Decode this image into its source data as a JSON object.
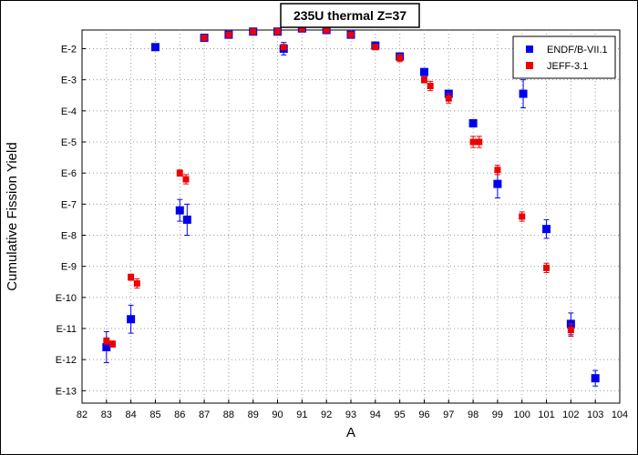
{
  "chart_data": {
    "type": "scatter",
    "title": "235U thermal Z=37",
    "xlabel": "A",
    "ylabel": "Cumulative Fission Yield",
    "xlim": [
      82,
      104
    ],
    "ylim_log10": [
      -13.4,
      -1.4
    ],
    "yscale": "log",
    "grid": true,
    "legend_position": "top-right",
    "x_ticks": [
      "82",
      "83",
      "84",
      "85",
      "86",
      "87",
      "88",
      "89",
      "90",
      "91",
      "92",
      "93",
      "94",
      "95",
      "96",
      "97",
      "98",
      "99",
      "100",
      "101",
      "102",
      "103",
      "104"
    ],
    "y_ticks": [
      {
        "exp": -2,
        "label": "E-2"
      },
      {
        "exp": -3,
        "label": "E-3"
      },
      {
        "exp": -4,
        "label": "E-4"
      },
      {
        "exp": -5,
        "label": "E-5"
      },
      {
        "exp": -6,
        "label": "E-6"
      },
      {
        "exp": -7,
        "label": "E-7"
      },
      {
        "exp": -8,
        "label": "E-8"
      },
      {
        "exp": -9,
        "label": "E-9"
      },
      {
        "exp": -10,
        "label": "E-10"
      },
      {
        "exp": -11,
        "label": "E-11"
      },
      {
        "exp": -12,
        "label": "E-12"
      },
      {
        "exp": -13,
        "label": "E-13"
      }
    ],
    "series": [
      {
        "name": "ENDF/B-VII.1",
        "color": "#0000ee",
        "points": [
          {
            "x": 83.0,
            "logy": -11.6,
            "err": 0.5
          },
          {
            "x": 84.0,
            "logy": -10.7,
            "err": 0.45
          },
          {
            "x": 85.0,
            "logy": -1.95,
            "err": 0.05
          },
          {
            "x": 86.0,
            "logy": -7.2,
            "err": 0.35
          },
          {
            "x": 86.3,
            "logy": -7.5,
            "err": 0.5
          },
          {
            "x": 87.0,
            "logy": -1.65,
            "err": 0.04
          },
          {
            "x": 88.0,
            "logy": -1.55,
            "err": 0.04
          },
          {
            "x": 89.0,
            "logy": -1.45,
            "err": 0.04
          },
          {
            "x": 90.0,
            "logy": -1.45,
            "err": 0.04
          },
          {
            "x": 90.25,
            "logy": -2.0,
            "err": 0.2
          },
          {
            "x": 91.0,
            "logy": -1.35,
            "err": 0.04
          },
          {
            "x": 92.0,
            "logy": -1.4,
            "err": 0.04
          },
          {
            "x": 93.0,
            "logy": -1.55,
            "err": 0.04
          },
          {
            "x": 94.0,
            "logy": -1.9,
            "err": 0.06
          },
          {
            "x": 95.0,
            "logy": -2.25,
            "err": 0.06
          },
          {
            "x": 96.0,
            "logy": -2.75,
            "err": 0.08
          },
          {
            "x": 97.0,
            "logy": -3.45,
            "err": 0.1
          },
          {
            "x": 98.0,
            "logy": -4.4,
            "err": 0.12
          },
          {
            "x": 99.0,
            "logy": -6.35,
            "err": 0.45
          },
          {
            "x": 100.05,
            "logy": -3.45,
            "err": 0.45
          },
          {
            "x": 101.0,
            "logy": -7.8,
            "err": 0.3
          },
          {
            "x": 102.0,
            "logy": -10.85,
            "err": 0.35
          },
          {
            "x": 103.0,
            "logy": -12.6,
            "err": 0.25
          }
        ]
      },
      {
        "name": "JEFF-3.1",
        "color": "#ee0000",
        "points": [
          {
            "x": 83.0,
            "logy": -11.4,
            "err": 0.1
          },
          {
            "x": 83.25,
            "logy": -11.5,
            "err": 0.1
          },
          {
            "x": 84.0,
            "logy": -9.35,
            "err": 0.1
          },
          {
            "x": 84.25,
            "logy": -9.55,
            "err": 0.15
          },
          {
            "x": 86.0,
            "logy": -6.0,
            "err": 0.1
          },
          {
            "x": 86.25,
            "logy": -6.2,
            "err": 0.15
          },
          {
            "x": 87.0,
            "logy": -1.65,
            "err": 0.04
          },
          {
            "x": 88.0,
            "logy": -1.55,
            "err": 0.04
          },
          {
            "x": 89.0,
            "logy": -1.45,
            "err": 0.04
          },
          {
            "x": 90.0,
            "logy": -1.45,
            "err": 0.04
          },
          {
            "x": 90.25,
            "logy": -1.95,
            "err": 0.08
          },
          {
            "x": 91.0,
            "logy": -1.35,
            "err": 0.04
          },
          {
            "x": 92.0,
            "logy": -1.4,
            "err": 0.04
          },
          {
            "x": 93.0,
            "logy": -1.55,
            "err": 0.04
          },
          {
            "x": 94.0,
            "logy": -1.95,
            "err": 0.08
          },
          {
            "x": 95.0,
            "logy": -2.3,
            "err": 0.12
          },
          {
            "x": 96.0,
            "logy": -3.0,
            "err": 0.1
          },
          {
            "x": 96.25,
            "logy": -3.2,
            "err": 0.15
          },
          {
            "x": 97.0,
            "logy": -3.6,
            "err": 0.15
          },
          {
            "x": 98.0,
            "logy": -5.0,
            "err": 0.18
          },
          {
            "x": 98.25,
            "logy": -5.0,
            "err": 0.18
          },
          {
            "x": 99.0,
            "logy": -5.9,
            "err": 0.15
          },
          {
            "x": 100.0,
            "logy": -7.4,
            "err": 0.15
          },
          {
            "x": 101.0,
            "logy": -9.05,
            "err": 0.15
          },
          {
            "x": 102.0,
            "logy": -11.05,
            "err": 0.2
          }
        ]
      }
    ]
  }
}
